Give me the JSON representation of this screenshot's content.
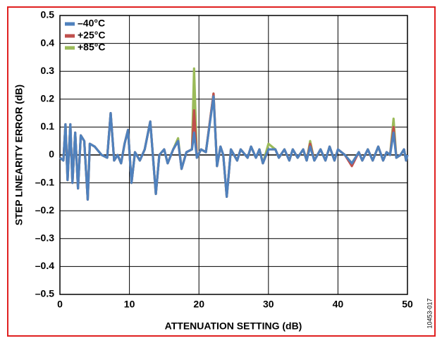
{
  "chart_data": {
    "type": "line",
    "xlabel": "ATTENUATION SETTING (dB)",
    "ylabel": "STEP LINEARITY ERROR (dB)",
    "annotation": "10453-017",
    "x": [
      0,
      0.5,
      0.8,
      1.1,
      1.5,
      1.8,
      2.2,
      2.6,
      3.0,
      3.5,
      4.0,
      4.3,
      5,
      6,
      6.8,
      7.3,
      7.8,
      8.3,
      8.8,
      9.3,
      9.8,
      10.3,
      10.8,
      11.5,
      12.2,
      13.0,
      13.8,
      14.3,
      15,
      15.5,
      16.3,
      17,
      17.5,
      18.2,
      19.0,
      19.3,
      19.7,
      20.3,
      21,
      22.1,
      22.6,
      23.1,
      23.5,
      24,
      24.6,
      25.5,
      26,
      27,
      27.5,
      28.2,
      28.7,
      29.2,
      30,
      31,
      31.5,
      32.3,
      33,
      33.5,
      34.2,
      35,
      35.5,
      36,
      36.6,
      37.5,
      38.2,
      38.8,
      39.5,
      40,
      41,
      42,
      43,
      43.5,
      44.3,
      45,
      45.8,
      46.5,
      47,
      47.5,
      48,
      48.4,
      49,
      49.5,
      49.8,
      50
    ],
    "series": [
      {
        "name": "+85°C",
        "color": "#9bbb59",
        "values": [
          -0.01,
          -0.02,
          0.11,
          -0.09,
          0.11,
          -0.1,
          0.08,
          -0.12,
          0.07,
          0.05,
          -0.16,
          0.04,
          0.03,
          0,
          -0.01,
          0.15,
          -0.02,
          0,
          -0.03,
          0.04,
          0.09,
          -0.1,
          0.01,
          -0.02,
          0.02,
          0.12,
          -0.14,
          0,
          0.02,
          -0.03,
          0.02,
          0.06,
          -0.05,
          0.01,
          0.02,
          0.31,
          -0.01,
          0.02,
          0.01,
          0.22,
          -0.04,
          0.03,
          0,
          -0.15,
          0.02,
          -0.02,
          0.02,
          -0.01,
          0.03,
          -0.01,
          0.02,
          -0.03,
          0.04,
          0.02,
          -0.01,
          0.02,
          -0.02,
          0.02,
          -0.01,
          0.02,
          -0.02,
          0.05,
          -0.02,
          0.02,
          -0.02,
          0.03,
          -0.02,
          0.02,
          0,
          -0.03,
          0.01,
          -0.02,
          0.02,
          -0.02,
          0.03,
          -0.02,
          0.01,
          0,
          0.13,
          -0.01,
          0,
          0.02,
          -0.02,
          0
        ]
      },
      {
        "name": "+25°C",
        "color": "#c0504d",
        "values": [
          -0.01,
          -0.02,
          0.11,
          -0.09,
          0.11,
          -0.1,
          0.08,
          -0.12,
          0.07,
          0.05,
          -0.16,
          0.04,
          0.03,
          0,
          -0.01,
          0.15,
          -0.02,
          0,
          -0.03,
          0.04,
          0.09,
          -0.1,
          0.01,
          -0.02,
          0.02,
          0.12,
          -0.14,
          0,
          0.02,
          -0.03,
          0.02,
          0.05,
          -0.05,
          0.01,
          0.02,
          0.16,
          -0.01,
          0.02,
          0.01,
          0.22,
          -0.04,
          0.03,
          0,
          -0.15,
          0.02,
          -0.02,
          0.02,
          -0.01,
          0.03,
          -0.01,
          0.02,
          -0.03,
          0.02,
          0.02,
          -0.01,
          0.02,
          -0.02,
          0.02,
          -0.01,
          0.02,
          -0.02,
          0.04,
          -0.02,
          0.02,
          -0.02,
          0.03,
          -0.02,
          0.02,
          0,
          -0.04,
          0.01,
          -0.02,
          0.02,
          -0.02,
          0.03,
          -0.02,
          0.01,
          0,
          0.1,
          -0.01,
          0,
          0.02,
          -0.02,
          0
        ]
      },
      {
        "name": "–40°C",
        "color": "#4f81bd",
        "values": [
          -0.01,
          -0.02,
          0.11,
          -0.09,
          0.11,
          -0.1,
          0.08,
          -0.12,
          0.07,
          0.05,
          -0.16,
          0.04,
          0.03,
          0,
          -0.01,
          0.15,
          -0.02,
          0,
          -0.03,
          0.04,
          0.09,
          -0.1,
          0.01,
          -0.02,
          0.02,
          0.12,
          -0.14,
          0,
          0.02,
          -0.03,
          0.02,
          0.05,
          -0.05,
          0.01,
          0.02,
          0.08,
          -0.01,
          0.02,
          0.01,
          0.21,
          -0.04,
          0.03,
          0,
          -0.15,
          0.02,
          -0.02,
          0.02,
          -0.01,
          0.03,
          -0.01,
          0.02,
          -0.03,
          0.02,
          0.02,
          -0.01,
          0.02,
          -0.02,
          0.02,
          -0.01,
          0.02,
          -0.02,
          0.03,
          -0.02,
          0.02,
          -0.02,
          0.03,
          -0.02,
          0.02,
          0,
          -0.03,
          0.01,
          -0.02,
          0.02,
          -0.02,
          0.03,
          -0.02,
          0.01,
          0,
          0.08,
          -0.01,
          0,
          0.02,
          -0.02,
          0
        ]
      }
    ],
    "legend_order": [
      2,
      1,
      0
    ],
    "xlim": [
      0,
      50
    ],
    "xticks": [
      0,
      10,
      20,
      30,
      40,
      50
    ],
    "ylim": [
      -0.5,
      0.5
    ],
    "yticks": [
      0.5,
      0.4,
      0.3,
      0.2,
      0.1,
      0,
      {
        "value": -0.1,
        "label": "–0.1"
      },
      {
        "value": -0.2,
        "label": "–0.2"
      },
      {
        "value": -0.3,
        "label": "–0.3"
      },
      {
        "value": -0.4,
        "label": "–0.4"
      },
      {
        "value": -0.5,
        "label": "–0.5"
      }
    ],
    "grid": true,
    "legend": "upper left"
  }
}
